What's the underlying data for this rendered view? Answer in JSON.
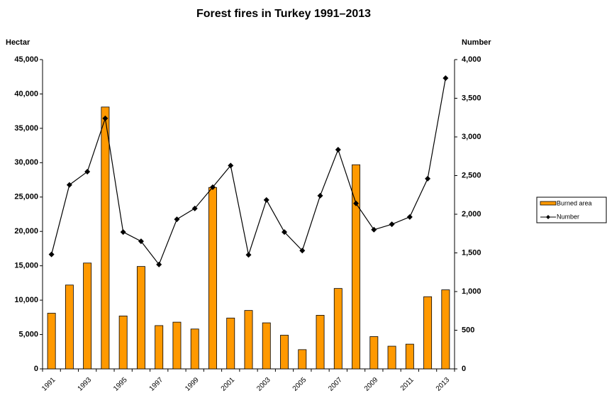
{
  "chart_data": {
    "type": "bar_line",
    "title": "Forest fires in Turkey 1991–2013",
    "y_label": "Hectar",
    "y2_label": "Number",
    "categories": [
      "1991",
      null,
      "1993",
      null,
      "1995",
      null,
      "1997",
      null,
      "1999",
      null,
      "2001",
      null,
      "2003",
      null,
      "2005",
      null,
      "2007",
      null,
      "2009",
      null,
      "2011",
      null,
      "2013"
    ],
    "series": [
      {
        "name": "Burned area",
        "type": "bar",
        "color": "#ff9900",
        "values": [
          8100,
          12200,
          15400,
          38100,
          7700,
          14900,
          6300,
          6800,
          5800,
          26400,
          7400,
          8500,
          6700,
          4900,
          2800,
          7800,
          11700,
          29700,
          4700,
          3300,
          3600,
          10500,
          11500
        ]
      },
      {
        "name": "Number",
        "type": "line",
        "axis": "y2",
        "color": "#000000",
        "values": [
          1480,
          2380,
          2550,
          3240,
          1770,
          1650,
          1350,
          1935,
          2075,
          2350,
          2630,
          1475,
          2185,
          1770,
          1530,
          2240,
          2835,
          2140,
          1800,
          1870,
          1965,
          2460,
          3760
        ]
      }
    ],
    "ylim": [
      0,
      45000
    ],
    "yticks": [
      0,
      {
        "value": 5000,
        "label": "5,000"
      },
      {
        "value": 10000,
        "label": "10,000"
      },
      {
        "value": 15000,
        "label": "15,000"
      },
      {
        "value": 20000,
        "label": "20,000"
      },
      {
        "value": 25000,
        "label": "25,000"
      },
      {
        "value": 30000,
        "label": "30,000"
      },
      {
        "value": 35000,
        "label": "35,000"
      },
      {
        "value": 40000,
        "label": "40,000"
      },
      {
        "value": 45000,
        "label": "45,000"
      }
    ],
    "y2lim": [
      0,
      4000
    ],
    "y2ticks": [
      0,
      500,
      {
        "value": 1000,
        "label": "1,000"
      },
      {
        "value": 1500,
        "label": "1,500"
      },
      {
        "value": 2000,
        "label": "2,000"
      },
      {
        "value": 2500,
        "label": "2,500"
      },
      {
        "value": 3000,
        "label": "3,000"
      },
      {
        "value": 3500,
        "label": "3,500"
      },
      {
        "value": 4000,
        "label": "4,000"
      }
    ],
    "grid": false,
    "legend": "right"
  }
}
